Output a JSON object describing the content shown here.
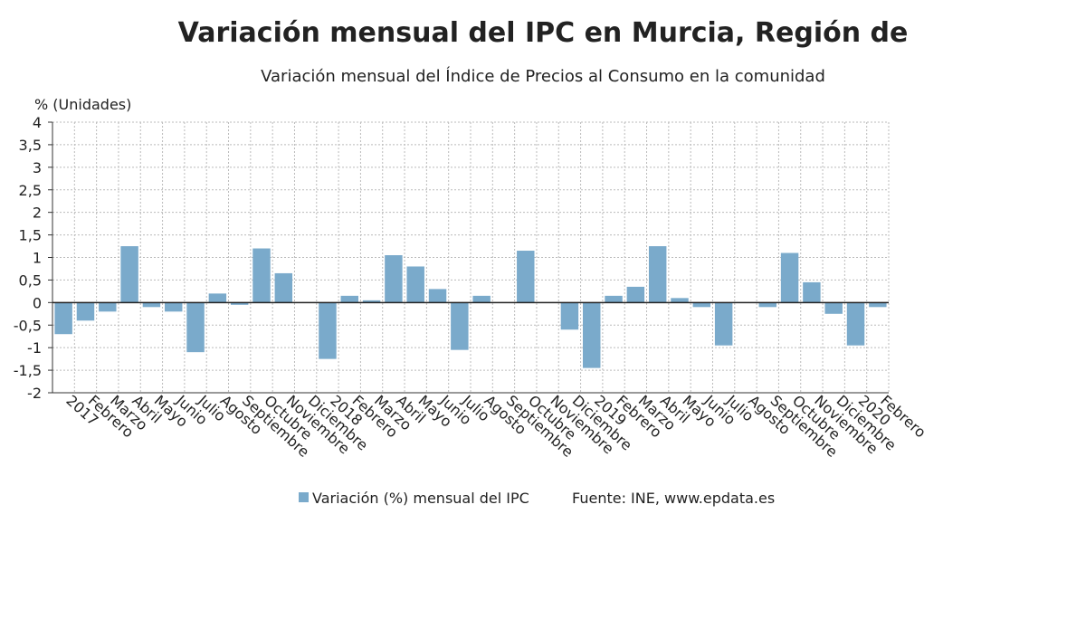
{
  "chart_data": {
    "type": "bar",
    "title": "Variación mensual del IPC en Murcia, Región de",
    "subtitle": "Variación mensual del Índice de Precios al Consumo en la comunidad",
    "y_label": "% (Unidades)",
    "source": "Fuente: INE, www.epdata.es",
    "categories": [
      "2017",
      "Febrero",
      "Marzo",
      "Abril",
      "Mayo",
      "Junio",
      "Julio",
      "Agosto",
      "Septiembre",
      "Octubre",
      "Noviembre",
      "Diciembre",
      "2018",
      "Febrero",
      "Marzo",
      "Abril",
      "Mayo",
      "Junio",
      "Julio",
      "Agosto",
      "Septiembre",
      "Octubre",
      "Noviembre",
      "Diciembre",
      "2019",
      "Febrero",
      "Marzo",
      "Abril",
      "Mayo",
      "Junio",
      "Julio",
      "Agosto",
      "Septiembre",
      "Octubre",
      "Noviembre",
      "Diciembre",
      "2020",
      "Febrero"
    ],
    "series": [
      {
        "name": "Variación (%) mensual del IPC",
        "color": "#7aaacb",
        "values": [
          -0.7,
          -0.4,
          -0.2,
          1.25,
          -0.1,
          -0.2,
          -1.1,
          0.2,
          -0.05,
          1.2,
          0.65,
          0.0,
          -1.25,
          0.15,
          0.05,
          1.05,
          0.8,
          0.3,
          -1.05,
          0.15,
          0.0,
          1.15,
          0.0,
          -0.6,
          -1.45,
          0.15,
          0.35,
          1.25,
          0.1,
          -0.1,
          -0.95,
          0.0,
          -0.1,
          1.1,
          0.45,
          -0.25,
          -0.95,
          -0.1
        ]
      }
    ],
    "ylim": [
      -2,
      4
    ],
    "yticks": [
      {
        "value": -2,
        "label": "-2"
      },
      {
        "value": -1.5,
        "label": "-1,5"
      },
      {
        "value": -1,
        "label": "-1"
      },
      {
        "value": -0.5,
        "label": "-0,5"
      },
      0,
      {
        "value": 0.5,
        "label": "0,5"
      },
      1,
      {
        "value": 1.5,
        "label": "1,5"
      },
      2,
      {
        "value": 2.5,
        "label": "2,5"
      },
      3,
      {
        "value": 3.5,
        "label": "3,5"
      },
      4
    ],
    "grid": true
  }
}
